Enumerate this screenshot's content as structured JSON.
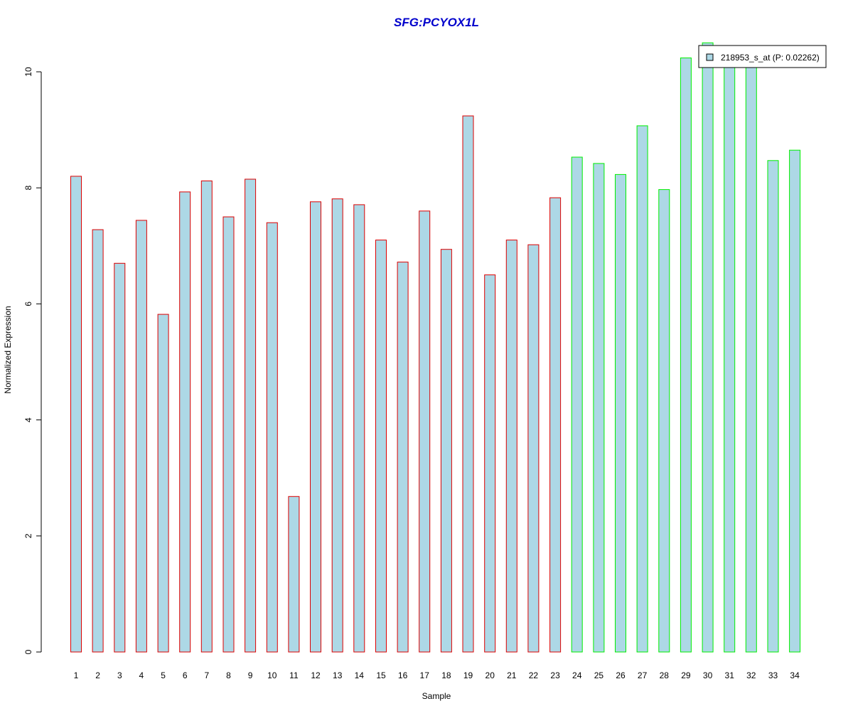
{
  "chart_data": {
    "type": "bar",
    "title": "SFG:PCYOX1L",
    "xlabel": "Sample",
    "ylabel": "Normalized Expression",
    "ylim": [
      0,
      10.5
    ],
    "yticks": [
      "0",
      "2",
      "4",
      "6",
      "8",
      "10"
    ],
    "categories": [
      "1",
      "2",
      "3",
      "4",
      "5",
      "6",
      "7",
      "8",
      "9",
      "10",
      "11",
      "12",
      "13",
      "14",
      "15",
      "16",
      "17",
      "18",
      "19",
      "20",
      "21",
      "22",
      "23",
      "24",
      "25",
      "26",
      "27",
      "28",
      "29",
      "30",
      "31",
      "32",
      "33",
      "34"
    ],
    "series": [
      {
        "name": "218953_s_at (P: 0.02262)",
        "values": [
          8.2,
          7.28,
          6.7,
          7.44,
          5.82,
          7.93,
          8.12,
          7.5,
          8.15,
          7.4,
          2.68,
          7.76,
          7.81,
          7.71,
          7.1,
          6.72,
          7.6,
          6.94,
          9.24,
          6.5,
          7.1,
          7.02,
          7.83,
          8.53,
          8.42,
          8.23,
          9.07,
          7.97,
          10.24,
          10.5,
          10.1,
          10.1,
          8.47,
          8.65
        ]
      }
    ],
    "groups": [
      "red",
      "red",
      "red",
      "red",
      "red",
      "red",
      "red",
      "red",
      "red",
      "red",
      "red",
      "red",
      "red",
      "red",
      "red",
      "red",
      "red",
      "red",
      "red",
      "red",
      "red",
      "red",
      "red",
      "green",
      "green",
      "green",
      "green",
      "green",
      "green",
      "green",
      "green",
      "green",
      "green",
      "green"
    ],
    "legend_position": "top-right",
    "grid": false
  },
  "colors": {
    "bar_fill": "#add8e6",
    "border_red": "#dd0000",
    "border_green": "#00ee00",
    "title": "#0000cc",
    "axis": "#000000"
  }
}
